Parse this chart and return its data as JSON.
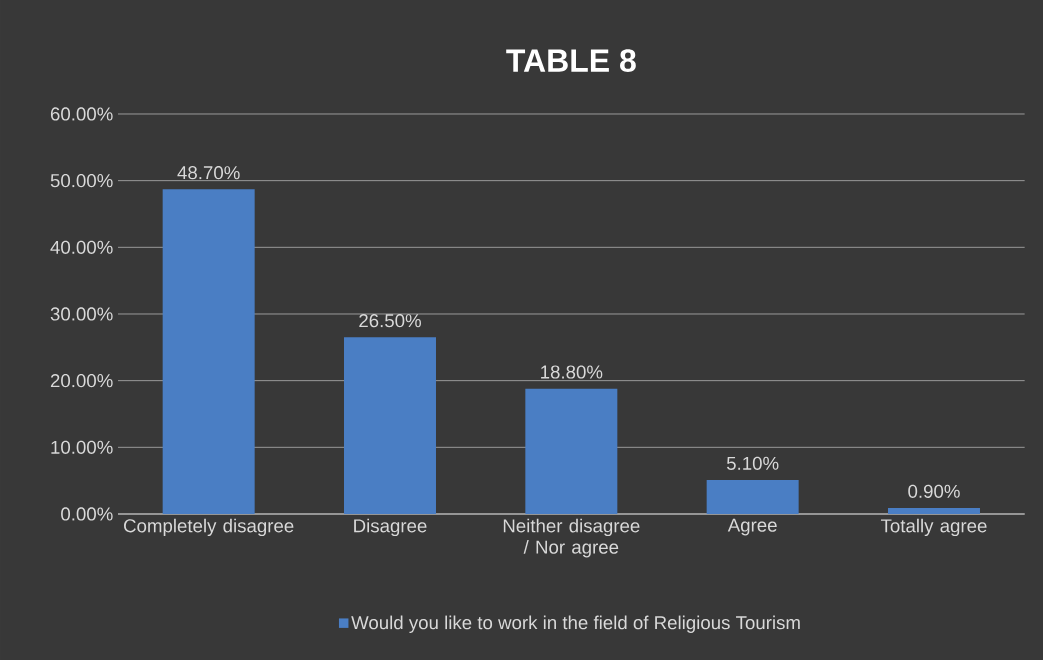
{
  "chart_data": {
    "type": "bar",
    "title": "TABLE 8",
    "categories": [
      "Completely disagree",
      "Disagree",
      "Neither disagree / Nor agree",
      "Agree",
      "Totally agree"
    ],
    "series": [
      {
        "name": "Would you like to work in the field of Religious Tourism",
        "color": "#4a7ec4",
        "values": [
          48.7,
          26.5,
          18.8,
          5.1,
          0.9
        ],
        "value_labels": [
          "48.70%",
          "26.50%",
          "18.80%",
          "5.10%",
          "0.90%"
        ]
      }
    ],
    "ylim": [
      0,
      60
    ],
    "yticks": [
      {
        "value": 0,
        "label": "0.00%"
      },
      {
        "value": 10,
        "label": "10.00%"
      },
      {
        "value": 20,
        "label": "20.00%"
      },
      {
        "value": 30,
        "label": "30.00%"
      },
      {
        "value": 40,
        "label": "40.00%"
      },
      {
        "value": 50,
        "label": "50.00%"
      },
      {
        "value": 60,
        "label": "60.00%"
      }
    ],
    "grid": "y",
    "legend": "bottom"
  }
}
